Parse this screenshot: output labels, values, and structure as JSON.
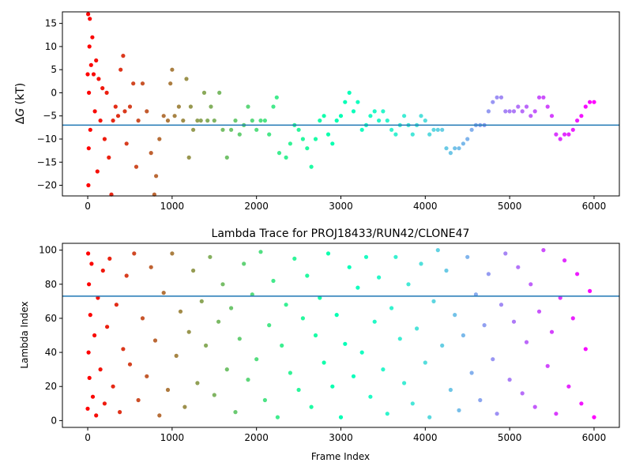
{
  "chart_data": [
    {
      "type": "scatter",
      "title": "",
      "xlabel": "",
      "ylabel": "ΔG (kT)",
      "ylabel_prefix": "Δ",
      "ylabel_var": "G",
      "ylabel_unit": " (kT)",
      "xlim": [
        -300,
        6300
      ],
      "ylim": [
        -22.3,
        17.5
      ],
      "xticks": [
        0,
        1000,
        2000,
        3000,
        4000,
        5000,
        6000
      ],
      "yticks": [
        -20,
        -15,
        -10,
        -5,
        0,
        5,
        10,
        15
      ],
      "hline": -7,
      "hline_color": "#1f77b4",
      "colormap": "rainbow (reversed): red at frame 0 to violet at frame 6000",
      "points": [
        [
          0,
          4
        ],
        [
          5,
          17
        ],
        [
          8,
          -20
        ],
        [
          12,
          -12
        ],
        [
          15,
          0
        ],
        [
          20,
          10
        ],
        [
          25,
          16
        ],
        [
          30,
          -8
        ],
        [
          40,
          6
        ],
        [
          55,
          12
        ],
        [
          70,
          4
        ],
        [
          85,
          -4
        ],
        [
          100,
          7
        ],
        [
          115,
          -17
        ],
        [
          130,
          3
        ],
        [
          150,
          -6
        ],
        [
          175,
          1
        ],
        [
          200,
          -10
        ],
        [
          225,
          0
        ],
        [
          250,
          -14
        ],
        [
          280,
          -22
        ],
        [
          300,
          -6
        ],
        [
          330,
          -3
        ],
        [
          360,
          -5
        ],
        [
          390,
          5
        ],
        [
          420,
          8
        ],
        [
          440,
          -4
        ],
        [
          460,
          -11
        ],
        [
          500,
          -3
        ],
        [
          540,
          2
        ],
        [
          575,
          -16
        ],
        [
          600,
          -6
        ],
        [
          650,
          2
        ],
        [
          700,
          -4
        ],
        [
          750,
          -13
        ],
        [
          790,
          -22
        ],
        [
          810,
          -18
        ],
        [
          850,
          -10
        ],
        [
          900,
          -5
        ],
        [
          950,
          -6
        ],
        [
          980,
          2
        ],
        [
          1000,
          5
        ],
        [
          1030,
          -5
        ],
        [
          1080,
          -3
        ],
        [
          1130,
          -6
        ],
        [
          1170,
          3
        ],
        [
          1200,
          -14
        ],
        [
          1220,
          -3
        ],
        [
          1250,
          -8
        ],
        [
          1300,
          -6
        ],
        [
          1340,
          -6
        ],
        [
          1380,
          0
        ],
        [
          1420,
          -6
        ],
        [
          1460,
          -3
        ],
        [
          1500,
          -6
        ],
        [
          1560,
          0
        ],
        [
          1600,
          -8
        ],
        [
          1650,
          -14
        ],
        [
          1700,
          -8
        ],
        [
          1750,
          -6
        ],
        [
          1800,
          -9
        ],
        [
          1850,
          -7
        ],
        [
          1900,
          -3
        ],
        [
          1950,
          -6
        ],
        [
          2000,
          -8
        ],
        [
          2050,
          -6
        ],
        [
          2100,
          -6
        ],
        [
          2150,
          -9
        ],
        [
          2200,
          -3
        ],
        [
          2240,
          -1
        ],
        [
          2270,
          -13
        ],
        [
          2350,
          -14
        ],
        [
          2400,
          -11
        ],
        [
          2450,
          -7
        ],
        [
          2500,
          -8
        ],
        [
          2550,
          -10
        ],
        [
          2600,
          -12
        ],
        [
          2650,
          -16
        ],
        [
          2700,
          -10
        ],
        [
          2750,
          -6
        ],
        [
          2800,
          -5
        ],
        [
          2850,
          -9
        ],
        [
          2900,
          -11
        ],
        [
          2950,
          -6
        ],
        [
          3000,
          -5
        ],
        [
          3050,
          -2
        ],
        [
          3100,
          0
        ],
        [
          3150,
          -4
        ],
        [
          3200,
          -2
        ],
        [
          3250,
          -8
        ],
        [
          3300,
          -7
        ],
        [
          3350,
          -5
        ],
        [
          3400,
          -4
        ],
        [
          3450,
          -6
        ],
        [
          3500,
          -4
        ],
        [
          3550,
          -6
        ],
        [
          3600,
          -8
        ],
        [
          3650,
          -9
        ],
        [
          3700,
          -7
        ],
        [
          3750,
          -5
        ],
        [
          3800,
          -7
        ],
        [
          3850,
          -9
        ],
        [
          3900,
          -7
        ],
        [
          3950,
          -5
        ],
        [
          4000,
          -6
        ],
        [
          4050,
          -9
        ],
        [
          4100,
          -8
        ],
        [
          4150,
          -8
        ],
        [
          4200,
          -8
        ],
        [
          4250,
          -12
        ],
        [
          4300,
          -13
        ],
        [
          4350,
          -12
        ],
        [
          4400,
          -12
        ],
        [
          4450,
          -11
        ],
        [
          4500,
          -10
        ],
        [
          4550,
          -8
        ],
        [
          4600,
          -7
        ],
        [
          4650,
          -7
        ],
        [
          4700,
          -7
        ],
        [
          4750,
          -4
        ],
        [
          4800,
          -2
        ],
        [
          4850,
          -1
        ],
        [
          4900,
          -1
        ],
        [
          4950,
          -4
        ],
        [
          5000,
          -4
        ],
        [
          5050,
          -4
        ],
        [
          5100,
          -3
        ],
        [
          5150,
          -4
        ],
        [
          5200,
          -3
        ],
        [
          5250,
          -5
        ],
        [
          5300,
          -4
        ],
        [
          5350,
          -1
        ],
        [
          5400,
          -1
        ],
        [
          5450,
          -3
        ],
        [
          5500,
          -5
        ],
        [
          5550,
          -9
        ],
        [
          5600,
          -10
        ],
        [
          5650,
          -9
        ],
        [
          5700,
          -9
        ],
        [
          5750,
          -8
        ],
        [
          5800,
          -6
        ],
        [
          5850,
          -5
        ],
        [
          5900,
          -3
        ],
        [
          5950,
          -2
        ],
        [
          6000,
          -2
        ]
      ]
    },
    {
      "type": "scatter",
      "title": "Lambda Trace for PROJ18433/RUN42/CLONE47",
      "xlabel": "Frame Index",
      "ylabel": "Lambda Index",
      "xlim": [
        -300,
        6300
      ],
      "ylim": [
        -4,
        104
      ],
      "xticks": [
        0,
        1000,
        2000,
        3000,
        4000,
        5000,
        6000
      ],
      "yticks": [
        0,
        20,
        40,
        60,
        80,
        100
      ],
      "hline": 73,
      "hline_color": "#1f77b4",
      "colormap": "rainbow (reversed): red at frame 0 to violet at frame 6000",
      "points": [
        [
          0,
          7
        ],
        [
          5,
          98
        ],
        [
          10,
          40
        ],
        [
          15,
          80
        ],
        [
          20,
          25
        ],
        [
          30,
          62
        ],
        [
          45,
          92
        ],
        [
          60,
          14
        ],
        [
          80,
          50
        ],
        [
          100,
          3
        ],
        [
          120,
          72
        ],
        [
          150,
          30
        ],
        [
          180,
          88
        ],
        [
          200,
          10
        ],
        [
          230,
          55
        ],
        [
          260,
          95
        ],
        [
          300,
          20
        ],
        [
          340,
          68
        ],
        [
          380,
          5
        ],
        [
          420,
          42
        ],
        [
          460,
          85
        ],
        [
          500,
          33
        ],
        [
          550,
          98
        ],
        [
          600,
          12
        ],
        [
          650,
          60
        ],
        [
          700,
          26
        ],
        [
          750,
          90
        ],
        [
          800,
          47
        ],
        [
          850,
          3
        ],
        [
          900,
          75
        ],
        [
          950,
          18
        ],
        [
          1000,
          98
        ],
        [
          1050,
          38
        ],
        [
          1100,
          64
        ],
        [
          1150,
          8
        ],
        [
          1200,
          52
        ],
        [
          1250,
          88
        ],
        [
          1300,
          22
        ],
        [
          1350,
          70
        ],
        [
          1400,
          44
        ],
        [
          1450,
          96
        ],
        [
          1500,
          15
        ],
        [
          1550,
          58
        ],
        [
          1600,
          80
        ],
        [
          1650,
          30
        ],
        [
          1700,
          66
        ],
        [
          1750,
          5
        ],
        [
          1800,
          48
        ],
        [
          1850,
          92
        ],
        [
          1900,
          24
        ],
        [
          1950,
          74
        ],
        [
          2000,
          36
        ],
        [
          2050,
          99
        ],
        [
          2100,
          12
        ],
        [
          2150,
          56
        ],
        [
          2200,
          82
        ],
        [
          2250,
          2
        ],
        [
          2300,
          44
        ],
        [
          2350,
          68
        ],
        [
          2400,
          28
        ],
        [
          2450,
          95
        ],
        [
          2500,
          18
        ],
        [
          2550,
          60
        ],
        [
          2600,
          85
        ],
        [
          2650,
          8
        ],
        [
          2700,
          50
        ],
        [
          2750,
          72
        ],
        [
          2800,
          34
        ],
        [
          2850,
          98
        ],
        [
          2900,
          20
        ],
        [
          2950,
          62
        ],
        [
          3000,
          2
        ],
        [
          3050,
          45
        ],
        [
          3100,
          90
        ],
        [
          3150,
          26
        ],
        [
          3200,
          78
        ],
        [
          3250,
          40
        ],
        [
          3300,
          96
        ],
        [
          3350,
          14
        ],
        [
          3400,
          58
        ],
        [
          3450,
          84
        ],
        [
          3500,
          30
        ],
        [
          3550,
          4
        ],
        [
          3600,
          66
        ],
        [
          3650,
          96
        ],
        [
          3700,
          48
        ],
        [
          3750,
          22
        ],
        [
          3800,
          80
        ],
        [
          3850,
          10
        ],
        [
          3900,
          54
        ],
        [
          3950,
          92
        ],
        [
          4000,
          34
        ],
        [
          4050,
          2
        ],
        [
          4100,
          70
        ],
        [
          4150,
          100
        ],
        [
          4200,
          44
        ],
        [
          4250,
          88
        ],
        [
          4300,
          18
        ],
        [
          4350,
          62
        ],
        [
          4400,
          6
        ],
        [
          4450,
          50
        ],
        [
          4500,
          96
        ],
        [
          4550,
          28
        ],
        [
          4600,
          74
        ],
        [
          4650,
          12
        ],
        [
          4700,
          56
        ],
        [
          4750,
          86
        ],
        [
          4800,
          36
        ],
        [
          4850,
          4
        ],
        [
          4900,
          68
        ],
        [
          4950,
          98
        ],
        [
          5000,
          24
        ],
        [
          5050,
          58
        ],
        [
          5100,
          90
        ],
        [
          5150,
          16
        ],
        [
          5200,
          46
        ],
        [
          5250,
          80
        ],
        [
          5300,
          8
        ],
        [
          5350,
          64
        ],
        [
          5400,
          100
        ],
        [
          5450,
          32
        ],
        [
          5500,
          52
        ],
        [
          5550,
          4
        ],
        [
          5600,
          72
        ],
        [
          5650,
          94
        ],
        [
          5700,
          20
        ],
        [
          5750,
          60
        ],
        [
          5800,
          86
        ],
        [
          5850,
          10
        ],
        [
          5900,
          42
        ],
        [
          5950,
          76
        ],
        [
          6000,
          2
        ]
      ]
    }
  ]
}
